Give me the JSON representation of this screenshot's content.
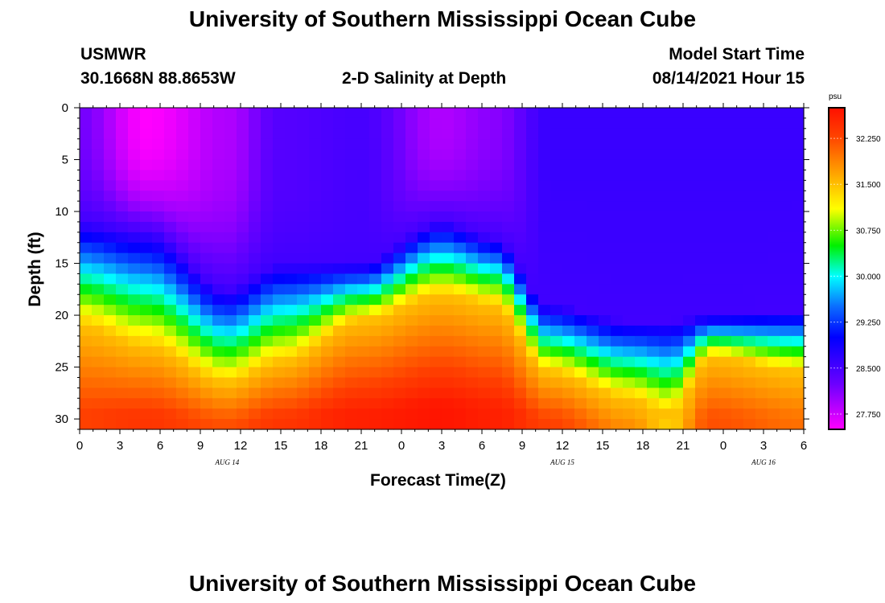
{
  "title": "University of Southern Mississippi Ocean Cube",
  "footer_title": "University of Southern Mississippi Ocean Cube",
  "station": {
    "name": "USMWR",
    "coords": "30.1668N  88.8653W"
  },
  "model_start": {
    "label": "Model Start Time",
    "value": "08/14/2021 Hour 15"
  },
  "chart_data": {
    "type": "heatmap",
    "title": "2-D Salinity at Depth",
    "xlabel": "Forecast Time(Z)",
    "ylabel": "Depth (ft)",
    "x_ticks": [
      "0",
      "3",
      "6",
      "9",
      "12",
      "15",
      "18",
      "21",
      "0",
      "3",
      "6",
      "9",
      "12",
      "15",
      "18",
      "21",
      "0",
      "3",
      "6"
    ],
    "date_labels": [
      {
        "text": "AUG 14",
        "hour": 11
      },
      {
        "text": "AUG 15",
        "hour": 36
      },
      {
        "text": "AUG 16",
        "hour": 51
      }
    ],
    "xlim": [
      0,
      54
    ],
    "y_ticks": [
      "0",
      "5",
      "10",
      "15",
      "20",
      "25",
      "30"
    ],
    "ylim": [
      0,
      31
    ],
    "colorbar": {
      "unit": "psu",
      "range": [
        27.5,
        32.75
      ],
      "ticks": [
        "27.750",
        "28.500",
        "29.250",
        "30.000",
        "30.750",
        "31.500",
        "32.250"
      ],
      "tick_values": [
        27.75,
        28.5,
        29.25,
        30.0,
        30.75,
        31.5,
        32.25
      ]
    },
    "profile_keyframes": [
      {
        "hour": 0,
        "mix_top": 11.0,
        "mix_bot": 21.0,
        "surface": 28.2,
        "bottom": 32.3
      },
      {
        "hour": 5,
        "mix_top": 12.0,
        "mix_bot": 23.0,
        "surface": 27.5,
        "bottom": 32.4
      },
      {
        "hour": 11,
        "mix_top": 17.5,
        "mix_bot": 26.5,
        "surface": 27.9,
        "bottom": 32.2
      },
      {
        "hour": 15,
        "mix_top": 15.0,
        "mix_bot": 24.5,
        "surface": 28.4,
        "bottom": 32.4
      },
      {
        "hour": 21,
        "mix_top": 15.0,
        "mix_bot": 20.5,
        "surface": 28.5,
        "bottom": 32.6
      },
      {
        "hour": 27,
        "mix_top": 11.0,
        "mix_bot": 18.0,
        "surface": 27.9,
        "bottom": 32.7
      },
      {
        "hour": 31,
        "mix_top": 12.5,
        "mix_bot": 19.0,
        "surface": 28.1,
        "bottom": 32.6
      },
      {
        "hour": 35,
        "mix_top": 19.0,
        "mix_bot": 25.5,
        "surface": 28.6,
        "bottom": 32.3
      },
      {
        "hour": 41,
        "mix_top": 20.5,
        "mix_bot": 28.0,
        "surface": 28.6,
        "bottom": 31.8
      },
      {
        "hour": 44,
        "mix_top": 20.5,
        "mix_bot": 29.5,
        "surface": 28.6,
        "bottom": 31.4
      },
      {
        "hour": 47,
        "mix_top": 20.0,
        "mix_bot": 24.0,
        "surface": 28.6,
        "bottom": 32.2
      },
      {
        "hour": 54,
        "mix_top": 19.5,
        "mix_bot": 25.5,
        "surface": 28.6,
        "bottom": 32.0
      }
    ]
  }
}
